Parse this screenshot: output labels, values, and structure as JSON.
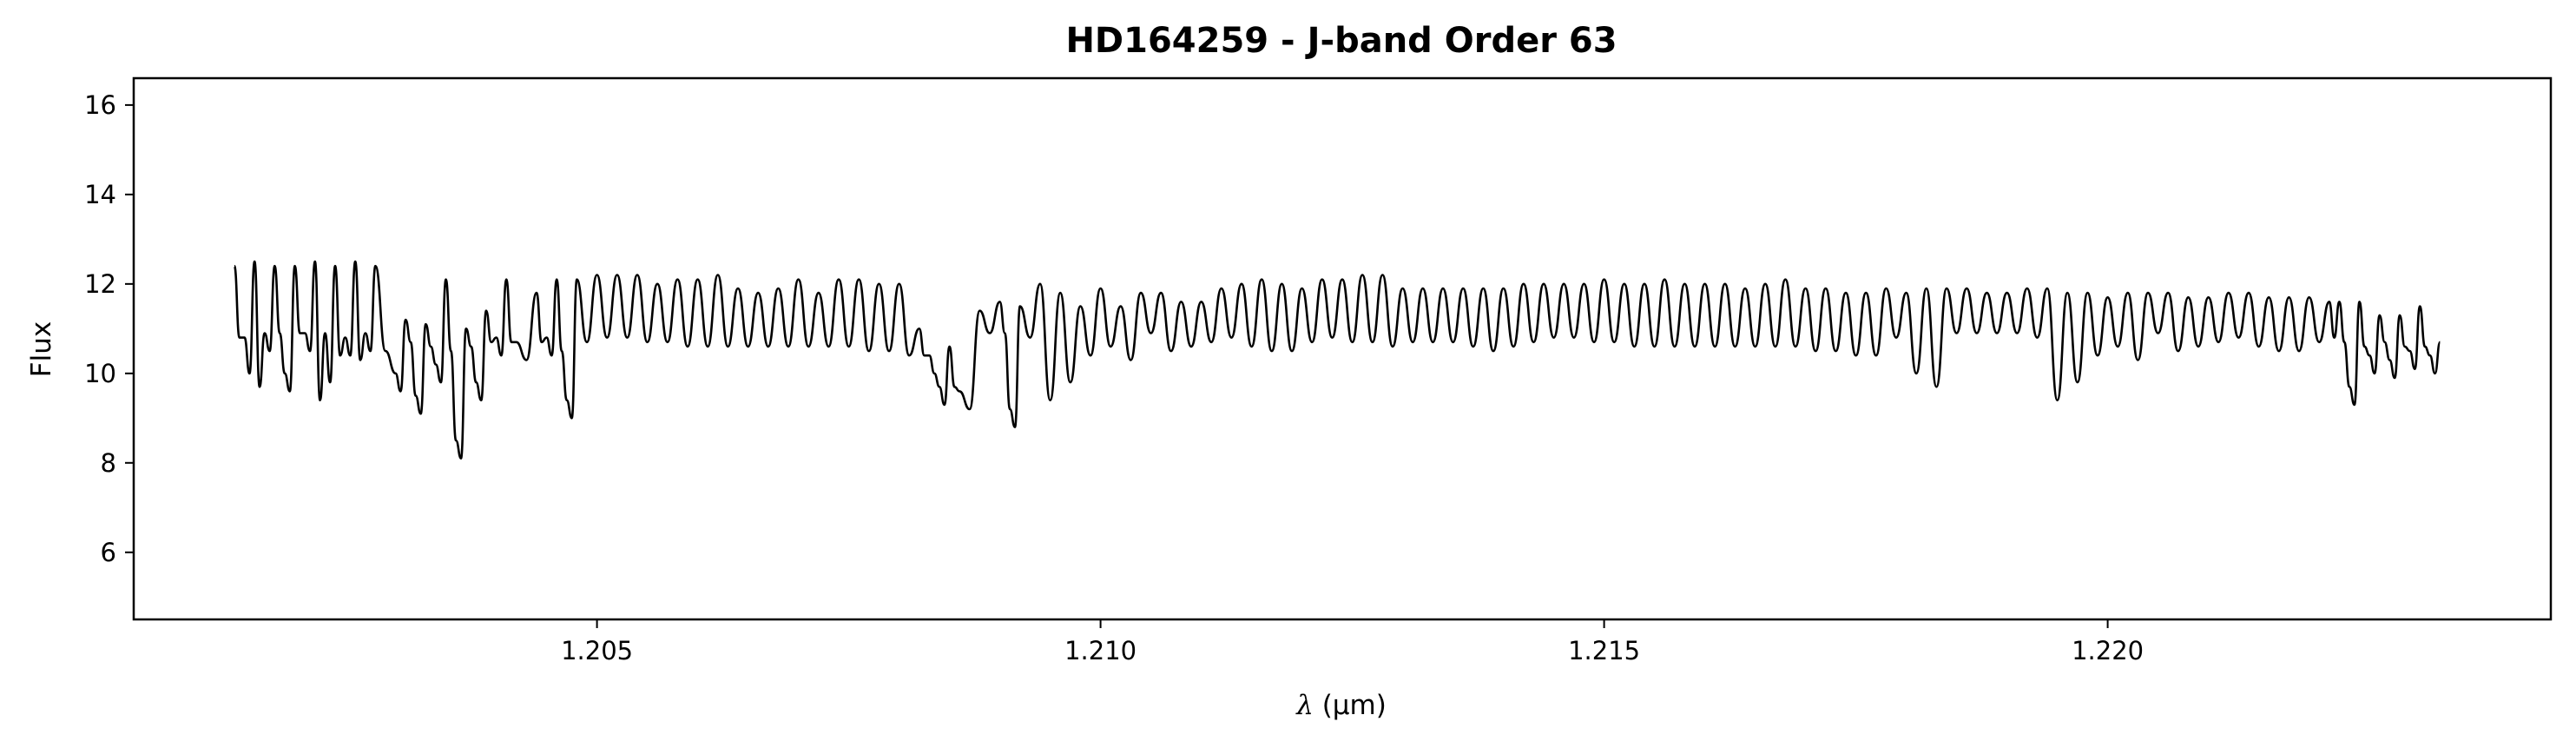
{
  "chart_data": {
    "type": "line",
    "title": "HD164259 - J-band Order 63",
    "xlabel_prefix": "λ",
    "xlabel_unit": "(μm)",
    "ylabel": "Flux",
    "xlim": [
      1.2004,
      1.2244
    ],
    "ylim": [
      4.5,
      16.6
    ],
    "x_ticks": [
      1.205,
      1.21,
      1.215,
      1.22
    ],
    "x_tick_labels": [
      "1.205",
      "1.210",
      "1.215",
      "1.220"
    ],
    "y_ticks": [
      6,
      8,
      10,
      12,
      14,
      16
    ],
    "y_tick_labels": [
      "6",
      "8",
      "10",
      "12",
      "14",
      "16"
    ],
    "grid": false,
    "line_color": "#000000",
    "series": [
      {
        "x": [
          1.2014,
          1.2015,
          1.2016,
          1.2017,
          1.2018,
          1.2019,
          1.202,
          1.2021,
          1.2022,
          1.2023,
          1.2024,
          1.2025,
          1.2026,
          1.2027,
          1.2028,
          1.203,
          1.2031,
          1.2032,
          1.2033,
          1.2034,
          1.2035,
          1.2036,
          1.2037,
          1.2038,
          1.2039,
          1.204,
          1.2041,
          1.2042,
          1.2044,
          1.2045,
          1.2046,
          1.2047,
          1.2048,
          1.205,
          1.2052,
          1.2054,
          1.2056,
          1.2058,
          1.206,
          1.2062,
          1.2064,
          1.2066,
          1.2068,
          1.207,
          1.2072,
          1.2074,
          1.2076,
          1.2078,
          1.208,
          1.2082,
          1.2083,
          1.2084,
          1.2085,
          1.2086,
          1.2088,
          1.209,
          1.2091,
          1.2092,
          1.2094,
          1.2096,
          1.2098,
          1.21,
          1.2102,
          1.2104,
          1.2106,
          1.2108,
          1.211,
          1.2112,
          1.2114,
          1.2116,
          1.2118,
          1.212,
          1.2122,
          1.2124,
          1.2126,
          1.2128,
          1.213,
          1.2132,
          1.2134,
          1.2136,
          1.2138,
          1.214,
          1.2142,
          1.2144,
          1.2146,
          1.2148,
          1.215,
          1.2152,
          1.2154,
          1.2156,
          1.2158,
          1.216,
          1.2162,
          1.2164,
          1.2166,
          1.2168,
          1.217,
          1.2172,
          1.2174,
          1.2176,
          1.2178,
          1.218,
          1.2182,
          1.2184,
          1.2186,
          1.2188,
          1.219,
          1.2192,
          1.2194,
          1.2196,
          1.2198,
          1.22,
          1.2202,
          1.2204,
          1.2206,
          1.2208,
          1.221,
          1.2212,
          1.2214,
          1.2216,
          1.2218,
          1.222,
          1.2222,
          1.2223,
          1.2224,
          1.2225,
          1.2226,
          1.2227,
          1.2228,
          1.2229,
          1.223,
          1.2231,
          1.2232,
          1.2233
        ],
        "y": [
          12.4,
          10.8,
          12.5,
          10.9,
          12.4,
          10.0,
          12.4,
          10.9,
          12.5,
          10.9,
          12.4,
          10.8,
          12.5,
          10.9,
          12.4,
          10.0,
          11.2,
          9.5,
          11.1,
          10.2,
          12.1,
          8.5,
          11.0,
          9.8,
          11.4,
          10.8,
          12.1,
          10.7,
          11.8,
          10.8,
          12.1,
          9.4,
          12.1,
          12.2,
          12.2,
          12.2,
          12.0,
          12.1,
          12.1,
          12.2,
          11.9,
          11.8,
          11.9,
          12.1,
          11.8,
          12.1,
          12.1,
          12.0,
          12.0,
          11.0,
          10.4,
          9.7,
          10.6,
          9.6,
          11.4,
          11.6,
          9.2,
          11.5,
          12.0,
          11.8,
          11.5,
          11.9,
          11.5,
          11.8,
          11.8,
          11.6,
          11.6,
          11.9,
          12.0,
          12.1,
          12.0,
          11.9,
          12.1,
          12.1,
          12.2,
          12.2,
          11.9,
          11.9,
          11.9,
          11.9,
          11.9,
          11.9,
          12.0,
          12.0,
          12.0,
          12.0,
          12.1,
          12.0,
          12.0,
          12.1,
          12.0,
          12.0,
          12.0,
          11.9,
          12.0,
          12.1,
          11.9,
          11.9,
          11.8,
          11.8,
          11.9,
          11.8,
          11.9,
          11.9,
          11.9,
          11.8,
          11.8,
          11.9,
          11.9,
          11.8,
          11.8,
          11.7,
          11.8,
          11.8,
          11.8,
          11.7,
          11.7,
          11.8,
          11.8,
          11.7,
          11.7,
          11.7,
          11.6,
          11.6,
          9.7,
          11.6,
          10.4,
          11.3,
          10.3,
          11.3,
          10.5,
          11.5,
          10.4,
          10.7
        ],
        "lows": [
          10.8,
          10.0,
          9.7,
          10.9,
          10.9,
          10.9,
          10.9,
          10.8,
          9.4,
          9.8,
          10.4,
          10.6,
          10.3,
          10.9,
          10.5,
          10.6,
          10.7,
          10.8,
          10.6,
          10.5,
          10.5,
          10.7,
          10.8,
          10.7,
          10.7,
          10.6,
          10.7,
          10.7,
          10.7,
          10.6,
          10.5,
          10.6,
          10.7,
          10.8,
          10.8,
          10.7,
          10.7,
          10.6,
          10.6,
          10.6,
          10.6,
          10.6,
          10.6,
          10.6,
          10.6,
          10.6,
          10.5,
          10.5,
          10.4,
          10.4
        ]
      }
    ]
  }
}
